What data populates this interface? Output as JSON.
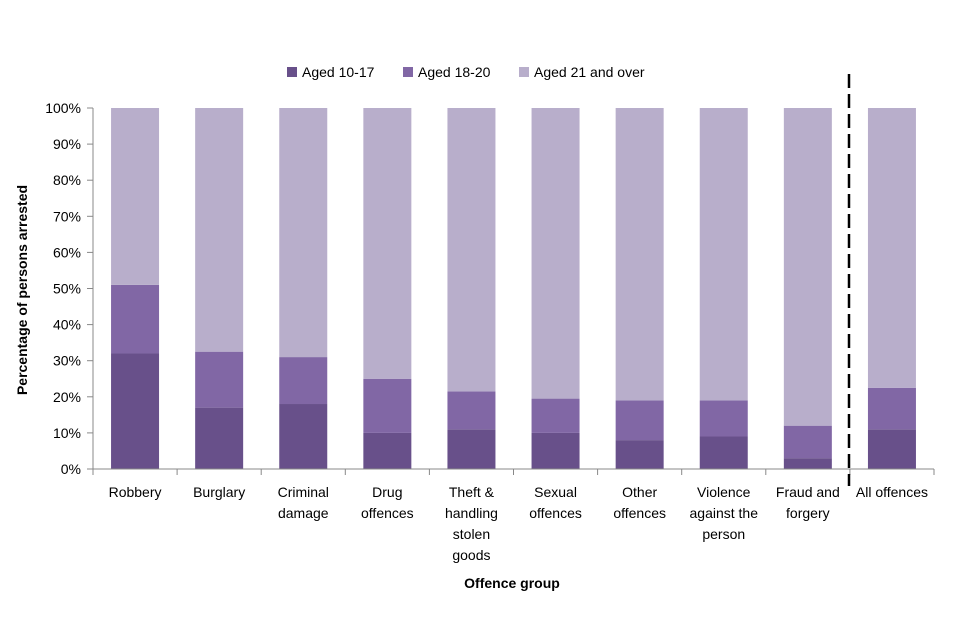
{
  "chart_data": {
    "type": "bar",
    "stacked": true,
    "categories": [
      [
        "Robbery"
      ],
      [
        "Burglary"
      ],
      [
        "Criminal",
        "damage"
      ],
      [
        "Drug",
        "offences"
      ],
      [
        "Theft &",
        "handling",
        "stolen",
        "goods"
      ],
      [
        "Sexual",
        "offences"
      ],
      [
        "Other",
        "offences"
      ],
      [
        "Violence",
        "against the",
        "person"
      ],
      [
        "Fraud and",
        "forgery"
      ],
      [
        "All offences"
      ]
    ],
    "series": [
      {
        "name": "Aged 10-17",
        "color": "#68508a",
        "values": [
          32,
          17,
          18,
          10,
          11,
          10,
          8,
          9,
          3,
          11
        ]
      },
      {
        "name": "Aged 18-20",
        "color": "#8167a5",
        "values": [
          19,
          15.5,
          13,
          15,
          10.5,
          9.5,
          11,
          10,
          9,
          11.5
        ]
      },
      {
        "name": "Aged 21 and over",
        "color": "#b8aecb",
        "values": [
          49,
          67.5,
          69,
          75,
          78.5,
          80.5,
          81,
          81,
          88,
          77.5
        ]
      }
    ],
    "xlabel": "Offence group",
    "ylabel": "Percentage of persons arrested",
    "ylim": [
      0,
      100
    ],
    "yticks": [
      "0%",
      "10%",
      "20%",
      "30%",
      "40%",
      "50%",
      "60%",
      "70%",
      "80%",
      "90%",
      "100%"
    ],
    "legend_position": "top",
    "separator_before_last_category": true
  }
}
